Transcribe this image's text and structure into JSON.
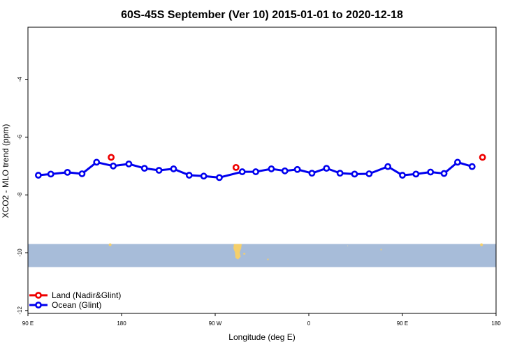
{
  "chart_data": {
    "type": "line",
    "title": "60S-45S September (Ver 10)   2015-01-01 to 2020-12-18",
    "xlabel": "Longitude (deg E)",
    "ylabel": "XCO2 - MLO trend (ppm)",
    "x_ticks": [
      {
        "value": 90,
        "label": "90 E"
      },
      {
        "value": 180,
        "label": "180"
      },
      {
        "value": 270,
        "label": "90 W"
      },
      {
        "value": 360,
        "label": "0"
      },
      {
        "value": 450,
        "label": "90 E"
      },
      {
        "value": 540,
        "label": "180"
      }
    ],
    "y_ticks": [
      -12,
      -10,
      -8,
      -6,
      -4
    ],
    "xlim": [
      90,
      540
    ],
    "ylim": [
      -12.1,
      -2.2
    ],
    "map_band": {
      "ylim": [
        -10.5,
        -9.7
      ],
      "ocean_color": "#a7bcd9",
      "land_color": "#f5cf6b"
    },
    "series": [
      {
        "name": "Land (Nadir&Glint)",
        "color": "#ee0000",
        "line": false,
        "x": [
          170,
          290,
          527
        ],
        "y": [
          -6.7,
          -7.05,
          -6.7
        ]
      },
      {
        "name": "Ocean (Glint)",
        "color": "#0000ee",
        "line": true,
        "x": [
          100,
          112,
          128,
          142,
          156,
          172,
          187,
          202,
          216,
          230,
          245,
          259,
          274,
          296,
          309,
          324,
          337,
          349,
          363,
          377,
          390,
          404,
          418,
          436,
          450,
          463,
          477,
          490,
          503,
          517
        ],
        "y": [
          -7.32,
          -7.28,
          -7.22,
          -7.27,
          -6.87,
          -7.0,
          -6.93,
          -7.08,
          -7.15,
          -7.1,
          -7.32,
          -7.35,
          -7.4,
          -7.2,
          -7.2,
          -7.1,
          -7.17,
          -7.12,
          -7.25,
          -7.08,
          -7.25,
          -7.28,
          -7.27,
          -7.02,
          -7.32,
          -7.28,
          -7.21,
          -7.26,
          -6.87,
          -7.02
        ]
      }
    ],
    "legend_position": "bottom-left",
    "grid": false
  }
}
